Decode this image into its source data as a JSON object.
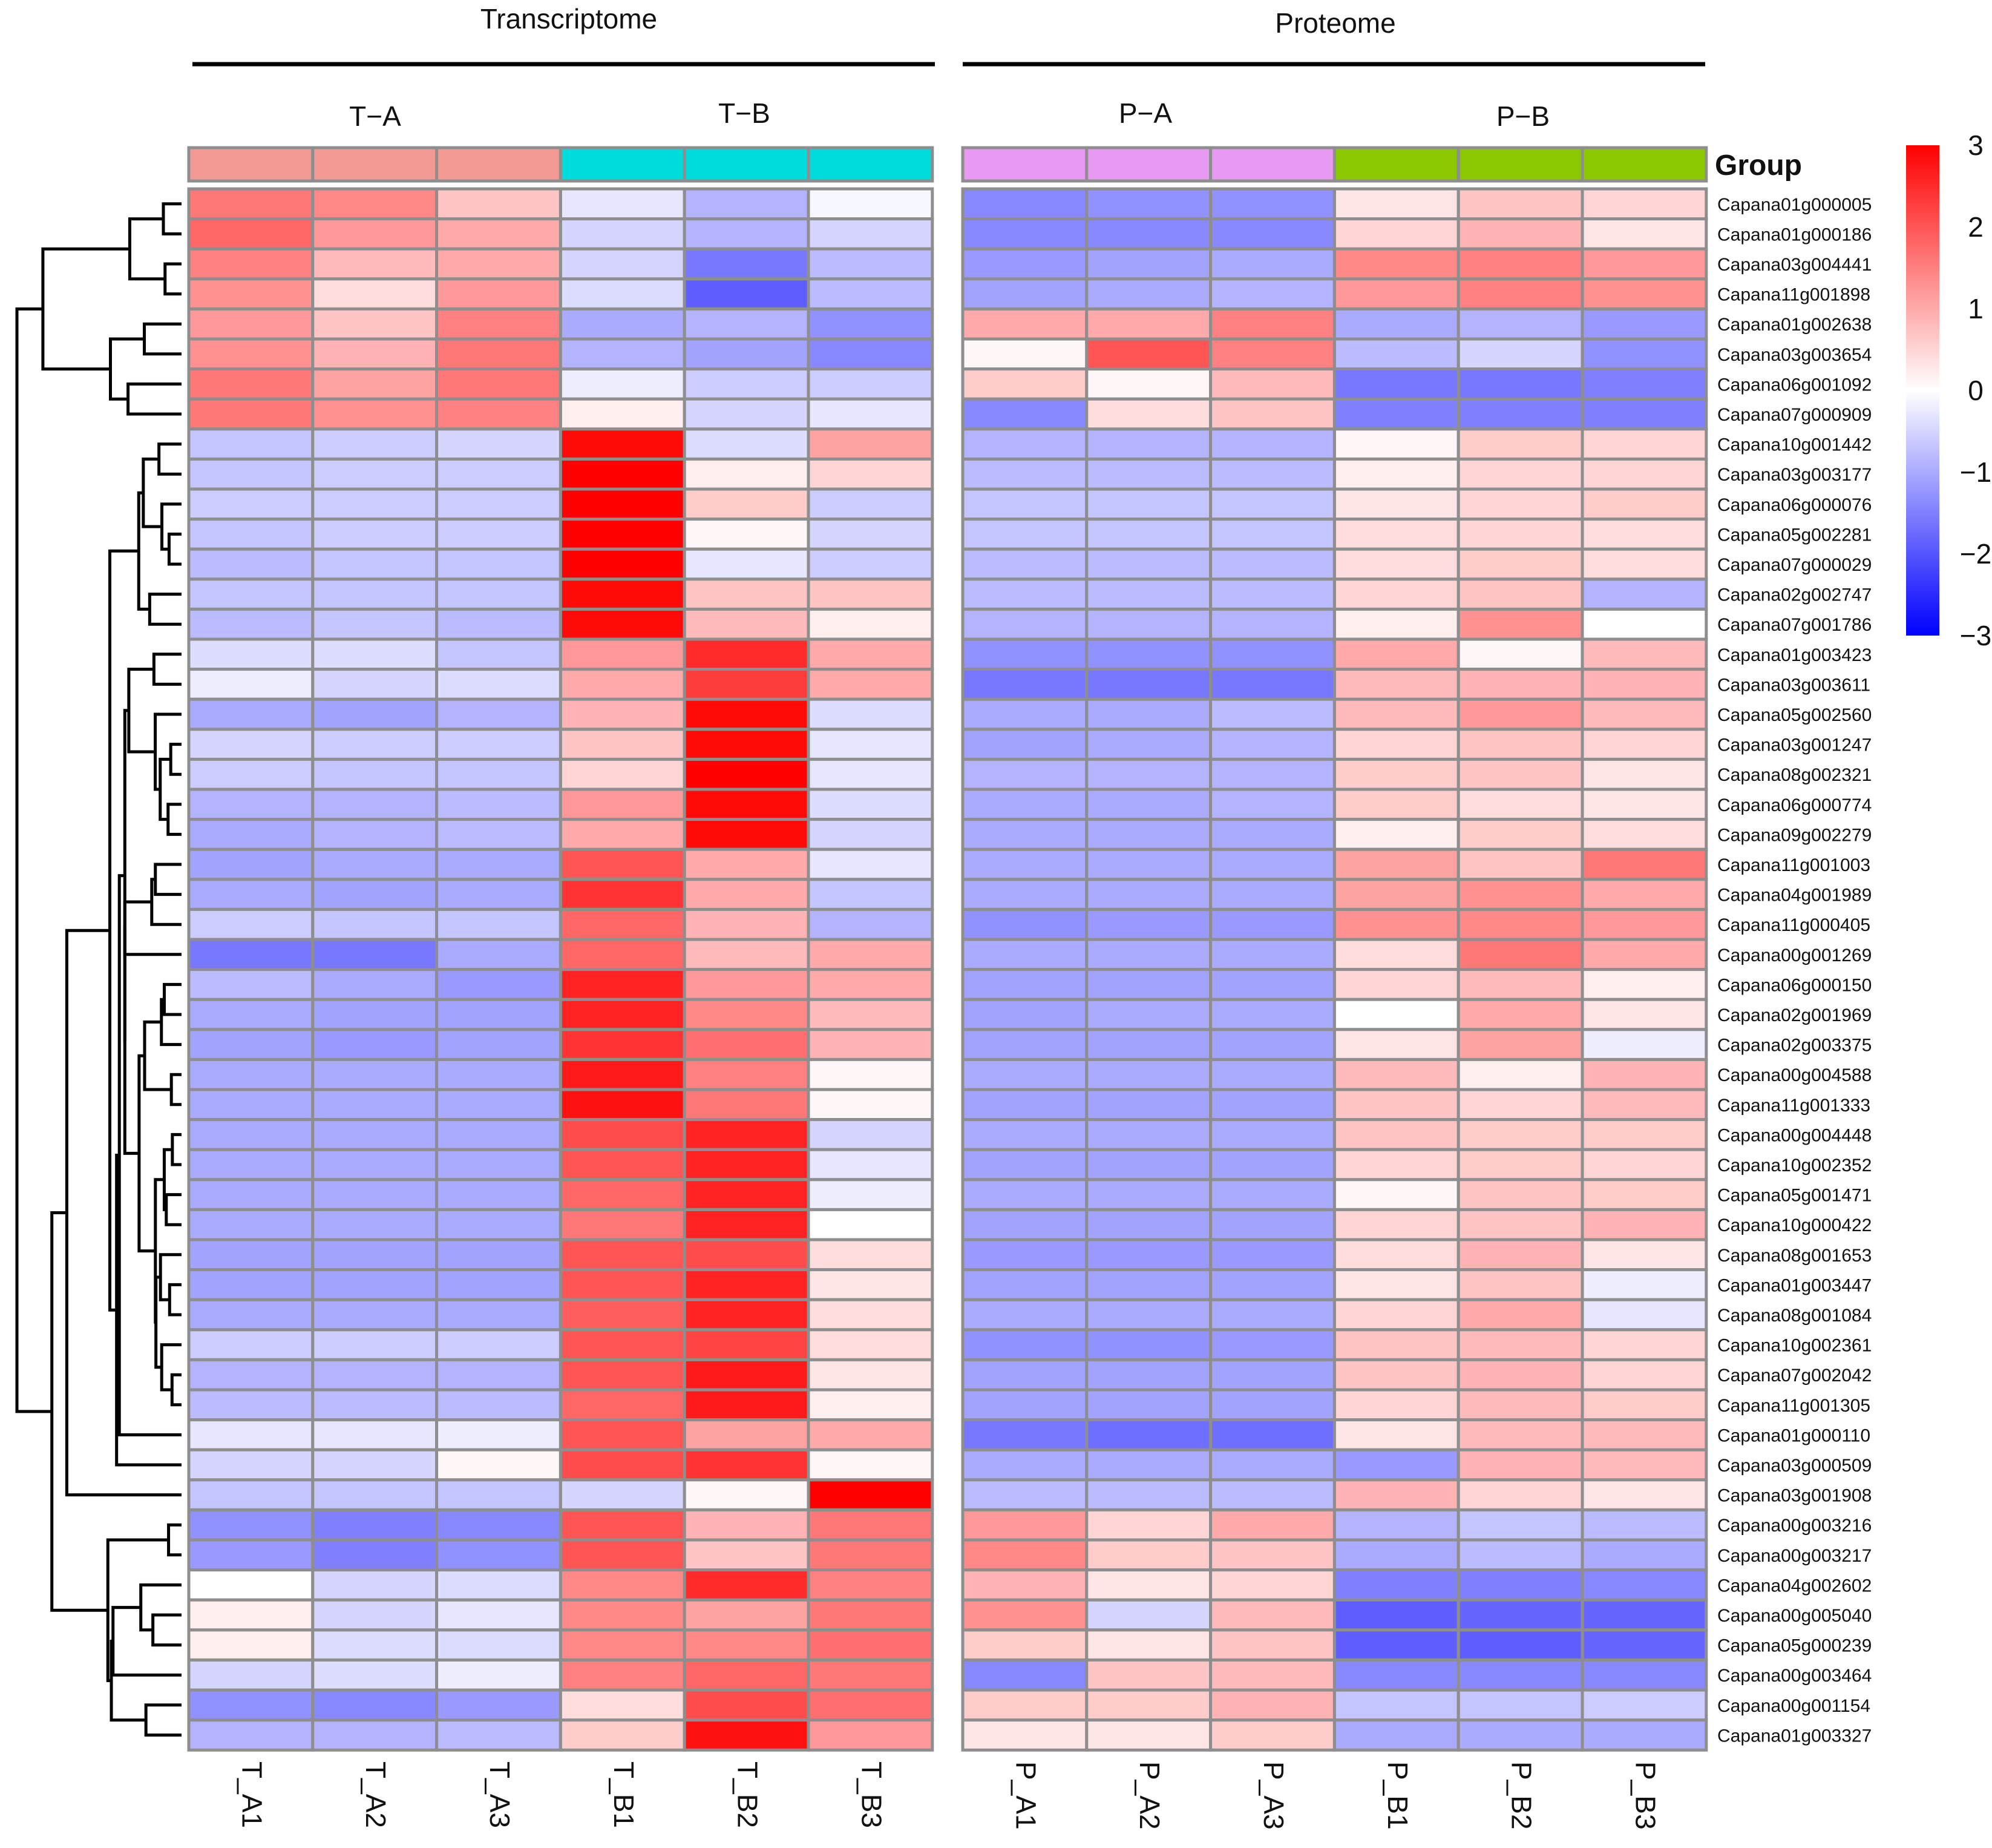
{
  "chart_data": {
    "type": "heatmap",
    "panels": [
      {
        "title": "Transcriptome",
        "groups": [
          "T−A",
          "T−B"
        ],
        "columns": [
          "T_A1",
          "T_A2",
          "T_A3",
          "T_B1",
          "T_B2",
          "T_B3"
        ],
        "group_colors": [
          "#F39A95",
          "#F39A95",
          "#F39A95",
          "#00DCDC",
          "#00DCDC",
          "#00DCDC"
        ]
      },
      {
        "title": "Proteome",
        "groups": [
          "P−A",
          "P−B"
        ],
        "columns": [
          "P_A1",
          "P_A2",
          "P_A3",
          "P_B1",
          "P_B2",
          "P_B3"
        ],
        "group_colors": [
          "#E89AF2",
          "#E89AF2",
          "#E89AF2",
          "#8CC800",
          "#8CC800",
          "#8CC800"
        ]
      }
    ],
    "annotation_label": "Group",
    "rows": [
      "Capana01g000005",
      "Capana01g000186",
      "Capana03g004441",
      "Capana11g001898",
      "Capana01g002638",
      "Capana03g003654",
      "Capana06g001092",
      "Capana07g000909",
      "Capana10g001442",
      "Capana03g003177",
      "Capana06g000076",
      "Capana05g002281",
      "Capana07g000029",
      "Capana02g002747",
      "Capana07g001786",
      "Capana01g003423",
      "Capana03g003611",
      "Capana05g002560",
      "Capana03g001247",
      "Capana08g002321",
      "Capana06g000774",
      "Capana09g002279",
      "Capana11g001003",
      "Capana04g001989",
      "Capana11g000405",
      "Capana00g001269",
      "Capana06g000150",
      "Capana02g001969",
      "Capana02g003375",
      "Capana00g004588",
      "Capana11g001333",
      "Capana00g004448",
      "Capana10g002352",
      "Capana05g001471",
      "Capana10g000422",
      "Capana08g001653",
      "Capana01g003447",
      "Capana08g001084",
      "Capana10g002361",
      "Capana07g002042",
      "Capana11g001305",
      "Capana01g000110",
      "Capana03g000509",
      "Capana03g001908",
      "Capana00g003216",
      "Capana00g003217",
      "Capana04g002602",
      "Capana00g005040",
      "Capana05g000239",
      "Capana00g003464",
      "Capana00g001154",
      "Capana01g003327"
    ],
    "transcriptome_values": [
      [
        1.6,
        1.4,
        0.7,
        -0.3,
        -0.9,
        -0.1
      ],
      [
        1.8,
        1.2,
        1.0,
        -0.5,
        -0.9,
        -0.5
      ],
      [
        1.5,
        0.8,
        1.0,
        -0.5,
        -1.6,
        -0.8
      ],
      [
        1.3,
        0.4,
        1.2,
        -0.4,
        -1.9,
        -0.8
      ],
      [
        1.2,
        0.7,
        1.5,
        -1.0,
        -0.9,
        -1.3
      ],
      [
        1.3,
        0.9,
        1.6,
        -0.9,
        -1.1,
        -1.4
      ],
      [
        1.6,
        1.1,
        1.6,
        -0.2,
        -0.6,
        -0.6
      ],
      [
        1.6,
        1.3,
        1.5,
        0.2,
        -0.5,
        -0.3
      ],
      [
        -0.7,
        -0.6,
        -0.5,
        2.9,
        -0.4,
        1.1
      ],
      [
        -0.7,
        -0.6,
        -0.6,
        3.0,
        0.2,
        0.5
      ],
      [
        -0.6,
        -0.6,
        -0.6,
        3.0,
        0.6,
        -0.6
      ],
      [
        -0.7,
        -0.6,
        -0.6,
        3.0,
        0.1,
        -0.5
      ],
      [
        -0.8,
        -0.7,
        -0.7,
        3.0,
        -0.3,
        -0.6
      ],
      [
        -0.7,
        -0.7,
        -0.7,
        2.9,
        0.7,
        0.7
      ],
      [
        -0.8,
        -0.7,
        -0.8,
        2.9,
        0.8,
        0.2
      ],
      [
        -0.4,
        -0.4,
        -0.7,
        1.2,
        2.5,
        1.0
      ],
      [
        -0.2,
        -0.5,
        -0.4,
        1.0,
        2.3,
        1.0
      ],
      [
        -1.0,
        -1.1,
        -0.9,
        0.9,
        2.9,
        -0.4
      ],
      [
        -0.5,
        -0.6,
        -0.6,
        0.7,
        2.9,
        -0.3
      ],
      [
        -0.6,
        -0.7,
        -0.7,
        0.5,
        3.0,
        -0.3
      ],
      [
        -0.9,
        -0.9,
        -0.8,
        1.2,
        2.9,
        -0.4
      ],
      [
        -1.0,
        -0.9,
        -0.8,
        1.0,
        2.9,
        -0.5
      ],
      [
        -1.1,
        -1.0,
        -1.0,
        2.0,
        1.0,
        -0.3
      ],
      [
        -1.0,
        -1.1,
        -1.0,
        2.4,
        1.0,
        -0.7
      ],
      [
        -0.6,
        -0.7,
        -0.7,
        1.8,
        0.9,
        -0.9
      ],
      [
        -1.6,
        -1.6,
        -1.0,
        1.8,
        0.8,
        1.0
      ],
      [
        -0.8,
        -1.0,
        -1.2,
        2.6,
        1.2,
        1.0
      ],
      [
        -1.0,
        -1.1,
        -1.1,
        2.6,
        1.4,
        0.8
      ],
      [
        -1.1,
        -1.2,
        -1.1,
        2.4,
        1.7,
        0.9
      ],
      [
        -1.0,
        -1.0,
        -1.0,
        2.7,
        1.5,
        0.1
      ],
      [
        -1.0,
        -1.0,
        -1.0,
        2.8,
        1.6,
        0.1
      ],
      [
        -1.0,
        -1.0,
        -1.0,
        2.1,
        2.6,
        -0.5
      ],
      [
        -1.0,
        -1.0,
        -1.0,
        2.0,
        2.6,
        -0.3
      ],
      [
        -1.0,
        -1.0,
        -1.0,
        1.8,
        2.6,
        -0.2
      ],
      [
        -1.0,
        -1.0,
        -1.0,
        1.6,
        2.6,
        0.0
      ],
      [
        -1.1,
        -1.1,
        -1.1,
        2.0,
        2.1,
        0.4
      ],
      [
        -1.1,
        -1.1,
        -1.1,
        2.0,
        2.6,
        0.3
      ],
      [
        -1.0,
        -1.0,
        -1.0,
        1.9,
        2.6,
        0.4
      ],
      [
        -0.6,
        -0.6,
        -0.6,
        2.0,
        2.2,
        0.4
      ],
      [
        -0.9,
        -0.9,
        -0.9,
        2.0,
        2.7,
        0.3
      ],
      [
        -0.8,
        -0.8,
        -0.8,
        1.8,
        2.7,
        0.2
      ],
      [
        -0.3,
        -0.3,
        -0.2,
        2.0,
        1.1,
        1.0
      ],
      [
        -0.5,
        -0.5,
        0.1,
        2.1,
        2.4,
        0.1
      ],
      [
        -0.7,
        -0.7,
        -0.7,
        -0.5,
        0.1,
        3.0
      ],
      [
        -1.3,
        -1.5,
        -1.4,
        2.0,
        0.9,
        1.6
      ],
      [
        -1.2,
        -1.5,
        -1.3,
        2.0,
        0.7,
        1.6
      ],
      [
        0.0,
        -0.5,
        -0.4,
        1.4,
        2.5,
        1.5
      ],
      [
        0.2,
        -0.5,
        -0.3,
        1.4,
        1.1,
        1.6
      ],
      [
        0.2,
        -0.4,
        -0.4,
        1.4,
        1.4,
        1.7
      ],
      [
        -0.5,
        -0.4,
        -0.2,
        1.5,
        1.8,
        1.6
      ],
      [
        -1.3,
        -1.4,
        -1.2,
        0.4,
        2.1,
        1.7
      ],
      [
        -0.9,
        -0.9,
        -0.8,
        0.6,
        2.8,
        1.2
      ]
    ],
    "proteome_values": [
      [
        -1.4,
        -1.3,
        -1.3,
        0.3,
        0.7,
        0.5
      ],
      [
        -1.4,
        -1.4,
        -1.4,
        0.5,
        0.9,
        0.3
      ],
      [
        -1.2,
        -1.1,
        -1.0,
        1.4,
        1.5,
        1.2
      ],
      [
        -1.1,
        -1.0,
        -0.9,
        1.2,
        1.5,
        1.3
      ],
      [
        1.0,
        1.0,
        1.5,
        -1.0,
        -0.9,
        -1.2
      ],
      [
        0.1,
        2.0,
        1.5,
        -0.8,
        -0.5,
        -1.3
      ],
      [
        0.6,
        0.1,
        0.8,
        -1.6,
        -1.6,
        -1.5
      ],
      [
        -1.4,
        0.4,
        0.7,
        -1.5,
        -1.5,
        -1.5
      ],
      [
        -0.9,
        -0.9,
        -0.9,
        0.1,
        0.6,
        0.5
      ],
      [
        -0.8,
        -0.8,
        -0.8,
        0.2,
        0.5,
        0.5
      ],
      [
        -0.7,
        -0.7,
        -0.7,
        0.3,
        0.5,
        0.6
      ],
      [
        -0.7,
        -0.7,
        -0.7,
        0.4,
        0.5,
        0.4
      ],
      [
        -0.8,
        -0.8,
        -0.8,
        0.4,
        0.6,
        0.4
      ],
      [
        -0.8,
        -0.8,
        -0.8,
        0.5,
        0.7,
        -0.9
      ],
      [
        -0.9,
        -0.9,
        -0.9,
        0.2,
        1.3,
        0.0
      ],
      [
        -1.3,
        -1.3,
        -1.3,
        1.0,
        0.1,
        0.8
      ],
      [
        -1.6,
        -1.6,
        -1.6,
        0.8,
        0.9,
        0.9
      ],
      [
        -1.0,
        -1.0,
        -0.8,
        0.8,
        1.2,
        0.8
      ],
      [
        -1.1,
        -1.0,
        -0.9,
        0.5,
        0.7,
        0.5
      ],
      [
        -0.9,
        -0.9,
        -0.9,
        0.6,
        0.7,
        0.3
      ],
      [
        -1.0,
        -1.0,
        -0.9,
        0.6,
        0.4,
        0.3
      ],
      [
        -1.0,
        -1.0,
        -1.0,
        0.2,
        0.6,
        0.4
      ],
      [
        -1.0,
        -1.0,
        -1.0,
        1.1,
        0.7,
        1.6
      ],
      [
        -1.0,
        -1.0,
        -1.0,
        1.1,
        1.3,
        1.0
      ],
      [
        -1.3,
        -1.2,
        -1.2,
        1.3,
        1.4,
        1.2
      ],
      [
        -1.0,
        -1.0,
        -1.0,
        0.4,
        1.6,
        1.0
      ],
      [
        -1.1,
        -1.1,
        -1.1,
        0.5,
        0.8,
        0.2
      ],
      [
        -1.1,
        -1.0,
        -1.0,
        0.0,
        1.0,
        0.3
      ],
      [
        -1.1,
        -1.1,
        -1.1,
        0.3,
        1.1,
        -0.2
      ],
      [
        -1.0,
        -1.0,
        -1.0,
        0.8,
        0.2,
        0.9
      ],
      [
        -1.1,
        -1.1,
        -1.1,
        0.7,
        0.5,
        0.8
      ],
      [
        -1.0,
        -1.0,
        -1.0,
        0.7,
        0.6,
        0.6
      ],
      [
        -1.1,
        -1.1,
        -1.1,
        0.5,
        0.6,
        0.5
      ],
      [
        -1.0,
        -1.0,
        -1.0,
        0.1,
        0.7,
        0.6
      ],
      [
        -1.1,
        -1.1,
        -1.1,
        0.5,
        0.7,
        0.9
      ],
      [
        -1.2,
        -1.2,
        -1.2,
        0.4,
        0.9,
        0.3
      ],
      [
        -1.1,
        -1.1,
        -1.1,
        0.3,
        0.7,
        -0.2
      ],
      [
        -1.0,
        -1.0,
        -1.0,
        0.5,
        1.0,
        -0.3
      ],
      [
        -1.3,
        -1.3,
        -1.2,
        0.7,
        0.8,
        0.5
      ],
      [
        -1.1,
        -1.1,
        -1.1,
        0.7,
        0.9,
        0.5
      ],
      [
        -1.1,
        -1.1,
        -1.1,
        0.5,
        0.8,
        0.6
      ],
      [
        -1.6,
        -1.7,
        -1.7,
        0.3,
        0.8,
        0.8
      ],
      [
        -1.0,
        -1.0,
        -1.0,
        -1.2,
        0.9,
        0.8
      ],
      [
        -0.8,
        -0.8,
        -0.8,
        0.9,
        0.5,
        0.3
      ],
      [
        1.2,
        0.5,
        1.0,
        -0.9,
        -0.7,
        -0.8
      ],
      [
        1.4,
        0.6,
        0.7,
        -1.0,
        -0.8,
        -1.0
      ],
      [
        0.9,
        0.3,
        0.5,
        -1.5,
        -1.5,
        -1.4
      ],
      [
        1.3,
        -0.5,
        0.8,
        -1.9,
        -1.8,
        -1.8
      ],
      [
        0.6,
        0.3,
        0.7,
        -1.9,
        -1.9,
        -1.8
      ],
      [
        -1.4,
        0.7,
        0.8,
        -1.4,
        -1.4,
        -1.4
      ],
      [
        0.6,
        0.6,
        0.9,
        -0.7,
        -0.7,
        -0.6
      ],
      [
        0.3,
        0.3,
        0.6,
        -1.0,
        -1.0,
        -1.0
      ]
    ],
    "color_scale": {
      "min": -3,
      "max": 3,
      "low": "#0000FF",
      "mid": "#FFFFFF",
      "high": "#FF0000",
      "ticks": [
        "3",
        "2",
        "1",
        "0",
        "−1",
        "−2",
        "−3"
      ]
    },
    "row_dendrogram": true,
    "cell_border": "#8E8E8E"
  }
}
